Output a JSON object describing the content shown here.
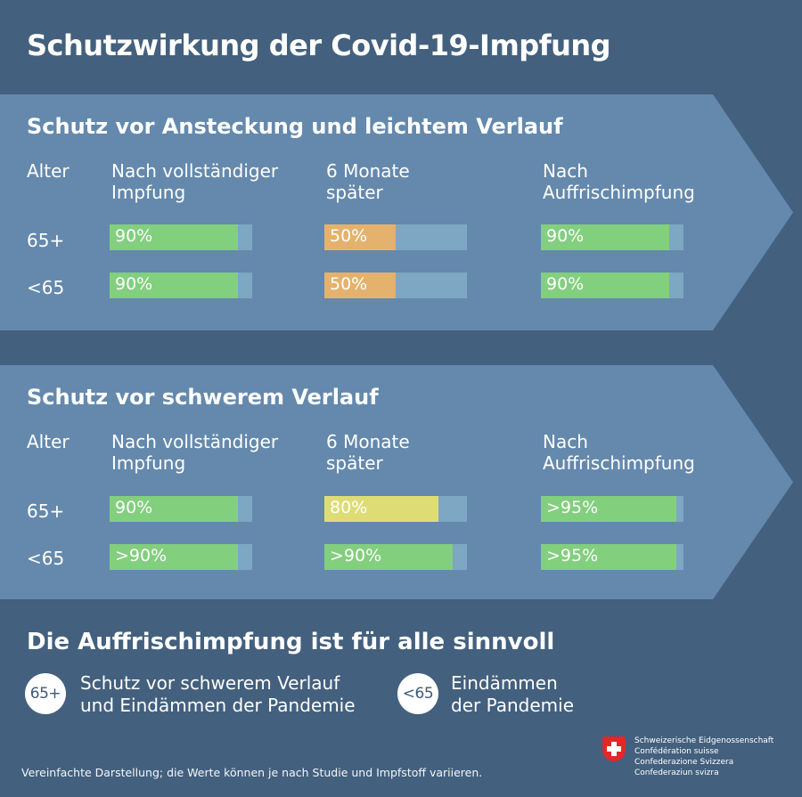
{
  "title": "Schutzwirkung der Covid-19-Impfung",
  "columns": {
    "age": "Alter",
    "c1": "Nach vollständiger\nImpfung",
    "c2": "6 Monate\nspäter",
    "c3": "Nach\nAuffrischimpfung"
  },
  "sections": [
    {
      "title": "Schutz vor Ansteckung und leichtem Verlauf",
      "rows": [
        {
          "age": "65+",
          "values": [
            {
              "label": "90%",
              "fraction": 0.9,
              "color": "green"
            },
            {
              "label": "50%",
              "fraction": 0.5,
              "color": "orange"
            },
            {
              "label": "90%",
              "fraction": 0.9,
              "color": "green"
            }
          ]
        },
        {
          "age": "<65",
          "values": [
            {
              "label": "90%",
              "fraction": 0.9,
              "color": "green"
            },
            {
              "label": "50%",
              "fraction": 0.5,
              "color": "orange"
            },
            {
              "label": "90%",
              "fraction": 0.9,
              "color": "green"
            }
          ]
        }
      ]
    },
    {
      "title": "Schutz vor schwerem Verlauf",
      "rows": [
        {
          "age": "65+",
          "values": [
            {
              "label": "90%",
              "fraction": 0.9,
              "color": "green"
            },
            {
              "label": "80%",
              "fraction": 0.8,
              "color": "yellow"
            },
            {
              "label": ">95%",
              "fraction": 0.95,
              "color": "green"
            }
          ]
        },
        {
          "age": "<65",
          "values": [
            {
              "label": ">90%",
              "fraction": 0.9,
              "color": "green"
            },
            {
              "label": ">90%",
              "fraction": 0.9,
              "color": "green"
            },
            {
              "label": ">95%",
              "fraction": 0.95,
              "color": "green"
            }
          ]
        }
      ]
    }
  ],
  "colors": {
    "green": "#82cf7e",
    "orange": "#e4b26d",
    "yellow": "#dedd75",
    "background": "#43607e",
    "panel": "#6489ad"
  },
  "bottom": {
    "title": "Die Auffrischimpfung ist für alle sinnvoll",
    "items": [
      {
        "badge": "65+",
        "text": "Schutz vor schwerem Verlauf\nund Eindämmen der Pandemie"
      },
      {
        "badge": "<65",
        "text": "Eindämmen\nder Pandemie"
      }
    ]
  },
  "footnote": "Vereinfachte Darstellung; die Werte können je nach Studie und Impfstoff variieren.",
  "logo": {
    "icon": "swiss-cross-icon",
    "lines": [
      "Schweizerische Eidgenossenschaft",
      "Confédération suisse",
      "Confederazione Svizzera",
      "Confederaziun svizra"
    ]
  }
}
